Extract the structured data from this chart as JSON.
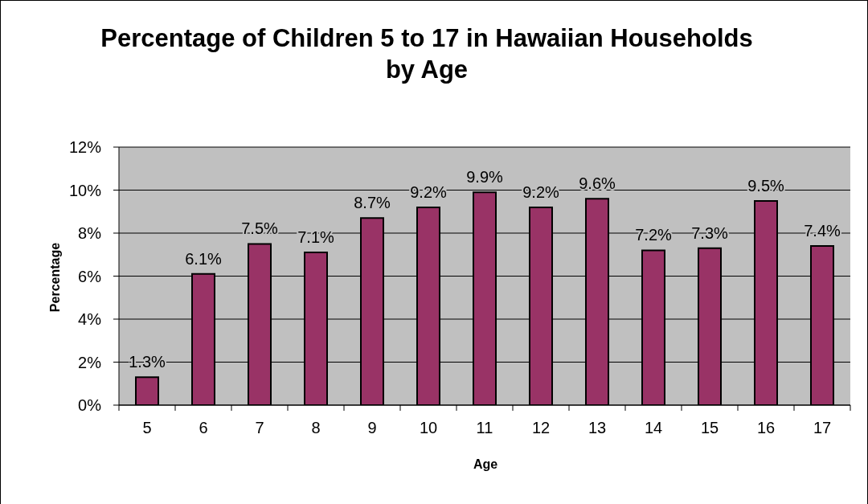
{
  "chart_data": {
    "type": "bar",
    "title": "Percentage of Children 5 to 17 in Hawaiian Households by Age",
    "xlabel": "Age",
    "ylabel": "Percentage",
    "categories": [
      "5",
      "6",
      "7",
      "8",
      "9",
      "10",
      "11",
      "12",
      "13",
      "14",
      "15",
      "16",
      "17"
    ],
    "values": [
      1.3,
      6.1,
      7.5,
      7.1,
      8.7,
      9.2,
      9.9,
      9.2,
      9.6,
      7.2,
      7.3,
      9.5,
      7.4
    ],
    "color": "#993366",
    "value_labels": [
      "1.3%",
      "6.1%",
      "7.5%",
      "7.1%",
      "8.7%",
      "9.2%",
      "9.9%",
      "9.2%",
      "9.6%",
      "7.2%",
      "7.3%",
      "9.5%",
      "7.4%"
    ],
    "ylim": [
      0,
      12
    ],
    "yticks": [
      {
        "value": 0,
        "label": "0%"
      },
      {
        "value": 2,
        "label": "2%"
      },
      {
        "value": 4,
        "label": "4%"
      },
      {
        "value": 6,
        "label": "6%"
      },
      {
        "value": 8,
        "label": "8%"
      },
      {
        "value": 10,
        "label": "10%"
      },
      {
        "value": 12,
        "label": "12%"
      }
    ],
    "grid": "y"
  }
}
